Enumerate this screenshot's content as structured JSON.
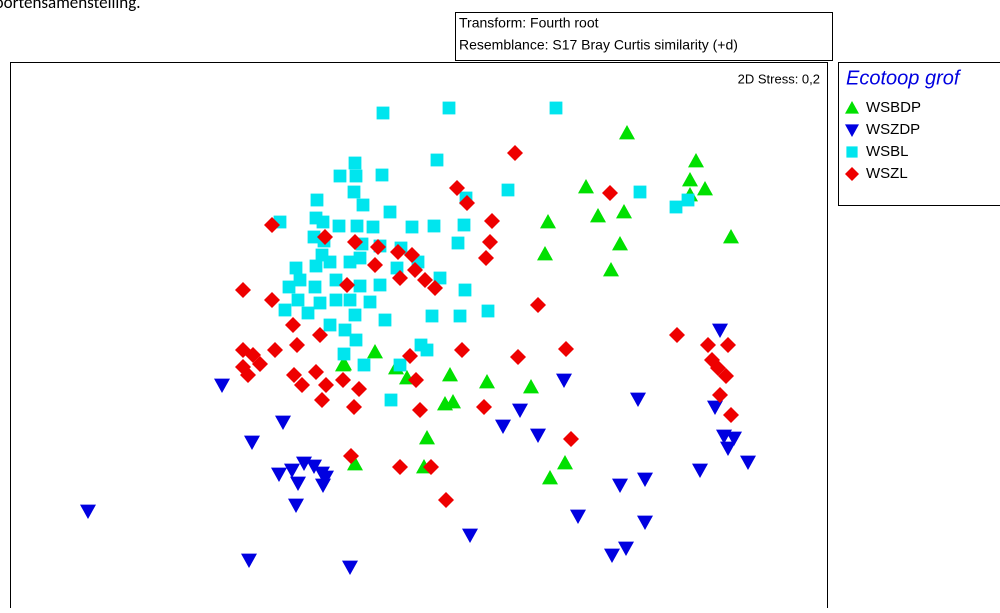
{
  "chart_data": {
    "type": "scatter",
    "caption": "soortensamenstelling.",
    "annotations": [
      "Transform: Fourth root",
      "Resemblance: S17 Bray Curtis similarity (+d)"
    ],
    "stress_label": "2D Stress: 0,2",
    "legend_title": "Ecotoop grof",
    "xlim": [
      10,
      828
    ],
    "ylim": [
      0,
      546
    ],
    "series": [
      {
        "name": "WSBDP",
        "color": "#00e000",
        "marker": "triangle-up",
        "x": [
          627,
          696,
          690,
          705,
          690,
          586,
          624,
          598,
          548,
          731,
          620,
          545,
          611,
          375,
          344,
          396,
          407,
          450,
          487,
          531,
          453,
          445,
          427,
          424,
          355,
          565,
          550,
          343
        ],
        "y": [
          475,
          447,
          428,
          419,
          413,
          421,
          396,
          392,
          386,
          371,
          364,
          354,
          338,
          256,
          244,
          240,
          230,
          233,
          226,
          221,
          206,
          204,
          170,
          141,
          144,
          145,
          130,
          243
        ]
      },
      {
        "name": "WSZDP",
        "color": "#0000e0",
        "marker": "triangle-down",
        "x": [
          88,
          222,
          720,
          564,
          638,
          520,
          715,
          283,
          503,
          538,
          252,
          724,
          728,
          734,
          748,
          700,
          304,
          314,
          292,
          322,
          279,
          323,
          298,
          645,
          620,
          296,
          578,
          645,
          470,
          612,
          626,
          249,
          350,
          326
        ],
        "y": [
          97,
          223,
          278,
          228,
          209,
          198,
          201,
          186,
          182,
          173,
          166,
          172,
          160,
          170,
          146,
          138,
          145,
          142,
          138,
          135,
          134,
          123,
          125,
          129,
          123,
          103,
          92,
          86,
          73,
          53,
          60,
          48,
          41,
          131
        ]
      },
      {
        "name": "WSBL",
        "color": "#00e5ee",
        "marker": "square",
        "x": [
          449,
          556,
          383,
          437,
          355,
          382,
          340,
          356,
          508,
          640,
          317,
          354,
          363,
          676,
          688,
          466,
          316,
          323,
          280,
          373,
          390,
          412,
          434,
          464,
          339,
          357,
          314,
          324,
          362,
          380,
          401,
          458,
          322,
          316,
          296,
          330,
          350,
          360,
          397,
          418,
          440,
          300,
          289,
          315,
          336,
          360,
          380,
          465,
          298,
          320,
          336,
          350,
          355,
          370,
          385,
          285,
          308,
          330,
          345,
          344,
          432,
          460,
          488,
          421,
          427,
          356,
          391,
          364,
          400
        ],
        "y": [
          500,
          500,
          495,
          448,
          445,
          433,
          432,
          432,
          418,
          416,
          408,
          416,
          403,
          401,
          408,
          410,
          390,
          386,
          386,
          381,
          396,
          381,
          382,
          383,
          382,
          382,
          371,
          367,
          364,
          362,
          360,
          365,
          353,
          342,
          340,
          346,
          346,
          350,
          340,
          346,
          330,
          328,
          321,
          321,
          328,
          322,
          323,
          318,
          308,
          305,
          308,
          308,
          293,
          306,
          288,
          298,
          295,
          283,
          278,
          254,
          292,
          292,
          297,
          263,
          258,
          268,
          208,
          243,
          243
        ]
      },
      {
        "name": "WSZL",
        "color": "#ee0000",
        "marker": "diamond",
        "x": [
          515,
          457,
          610,
          467,
          492,
          272,
          325,
          355,
          378,
          398,
          490,
          412,
          486,
          375,
          400,
          415,
          425,
          435,
          243,
          272,
          347,
          538,
          293,
          297,
          320,
          677,
          243,
          253,
          260,
          275,
          243,
          248,
          410,
          462,
          518,
          566,
          708,
          712,
          728,
          294,
          316,
          302,
          326,
          322,
          343,
          359,
          354,
          416,
          420,
          484,
          571,
          718,
          726,
          720,
          731,
          351,
          400,
          431,
          446
        ],
        "y": [
          455,
          420,
          415,
          405,
          387,
          383,
          371,
          366,
          361,
          356,
          366,
          353,
          350,
          343,
          330,
          338,
          328,
          320,
          318,
          308,
          323,
          303,
          283,
          263,
          273,
          273,
          258,
          253,
          244,
          258,
          241,
          233,
          252,
          258,
          251,
          259,
          263,
          248,
          263,
          233,
          236,
          223,
          223,
          208,
          228,
          219,
          201,
          228,
          198,
          201,
          169,
          240,
          232,
          213,
          193,
          152,
          141,
          141,
          108
        ]
      }
    ]
  }
}
